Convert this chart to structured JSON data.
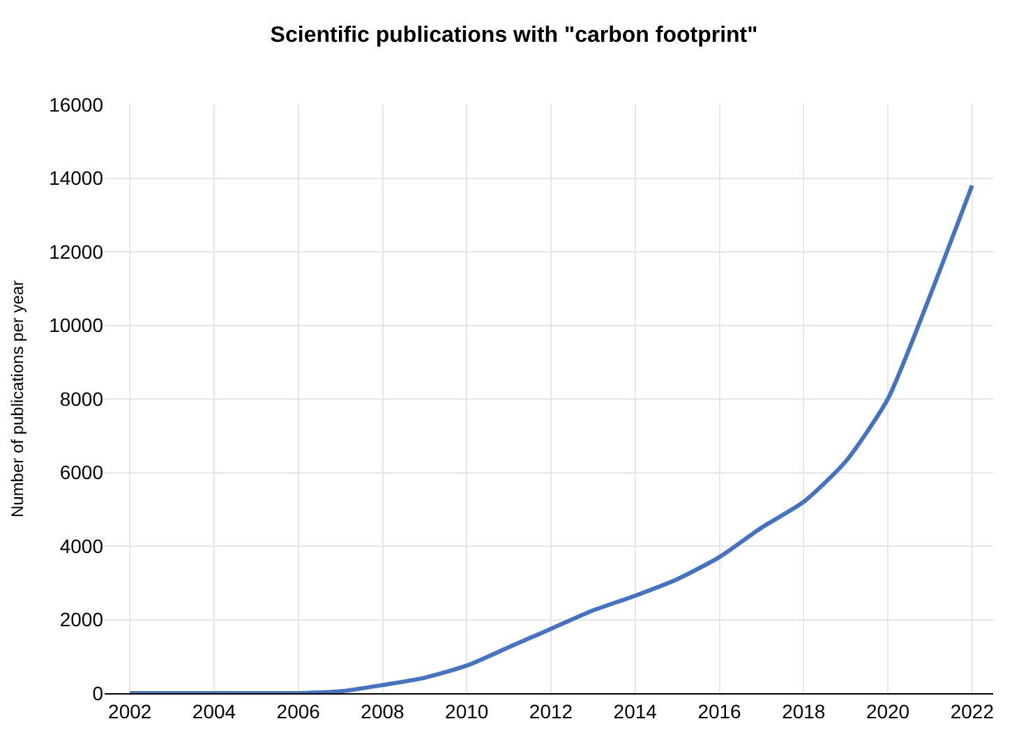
{
  "chart_data": {
    "type": "line",
    "title": "Scientific publications with \"carbon footprint\"",
    "ylabel": "Number of publications per year",
    "x": [
      2002,
      2003,
      2004,
      2005,
      2006,
      2007,
      2008,
      2009,
      2010,
      2011,
      2012,
      2013,
      2014,
      2015,
      2016,
      2017,
      2018,
      2019,
      2020,
      2021,
      2022
    ],
    "series": [
      {
        "color": "#4472c4",
        "values": [
          0,
          0,
          0,
          0,
          0,
          50,
          220,
          420,
          750,
          1250,
          1750,
          2250,
          2650,
          3100,
          3700,
          4500,
          5200,
          6300,
          8000,
          10800,
          13800
        ]
      }
    ],
    "xlim": [
      2001.4,
      2022.5
    ],
    "xticks": [
      2002,
      2004,
      2006,
      2008,
      2010,
      2012,
      2014,
      2016,
      2018,
      2020,
      2022
    ],
    "ylim": [
      0,
      16000
    ],
    "yticks": [
      0,
      2000,
      4000,
      6000,
      8000,
      10000,
      12000,
      14000,
      16000
    ],
    "grid": true,
    "marker": "none",
    "line_style": "solid"
  }
}
